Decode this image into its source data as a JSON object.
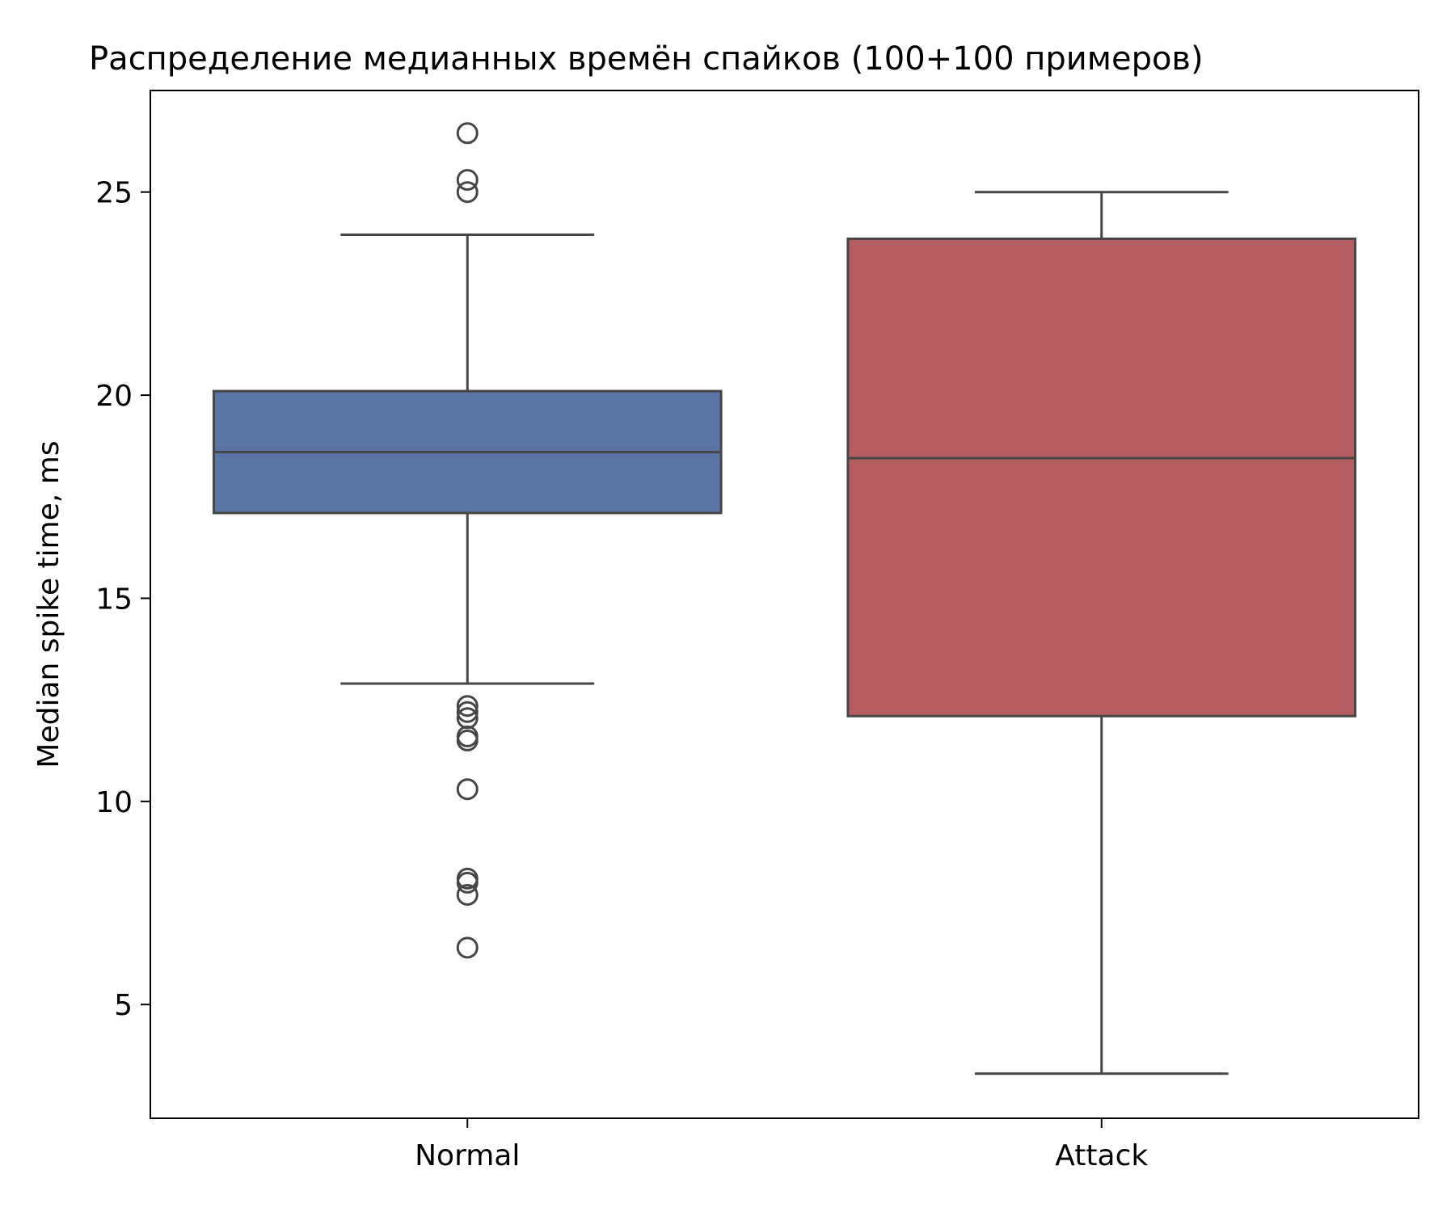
{
  "chart_data": {
    "type": "box",
    "title": "Распределение медианных времён спайков (100+100 примеров)",
    "xlabel": "",
    "ylabel": "Median spike time, ms",
    "ylim": [
      2.2,
      27.5
    ],
    "yticks": [
      5,
      10,
      15,
      20,
      25
    ],
    "categories": [
      "Normal",
      "Attack"
    ],
    "boxes": [
      {
        "category": "Normal",
        "color": "#5a75a4",
        "whisker_low": 12.9,
        "q1": 17.1,
        "median": 18.6,
        "q3": 20.1,
        "whisker_high": 23.95,
        "outliers": [
          26.45,
          25.3,
          25.0,
          12.35,
          12.2,
          12.05,
          11.6,
          11.5,
          10.3,
          8.1,
          8.0,
          7.7,
          6.4
        ]
      },
      {
        "category": "Attack",
        "color": "#b55d60",
        "whisker_low": 3.3,
        "q1": 12.1,
        "median": 18.45,
        "q3": 23.85,
        "whisker_high": 25.0,
        "outliers": []
      }
    ],
    "grid": false,
    "legend": "none"
  }
}
